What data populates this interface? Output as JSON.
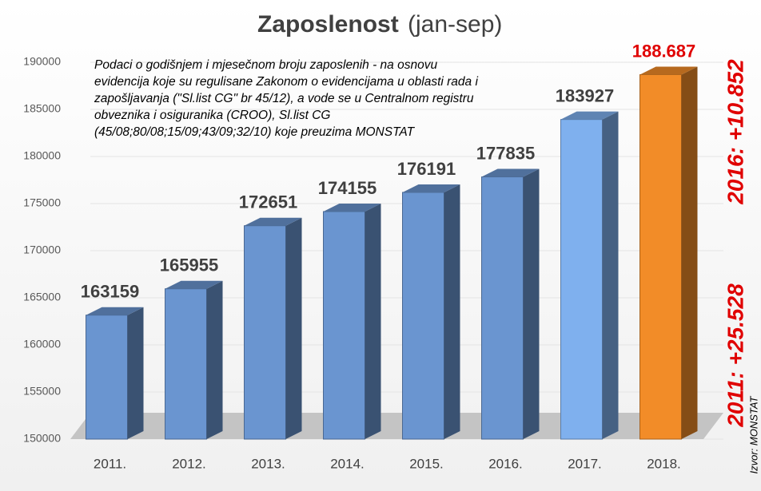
{
  "chart_data": {
    "type": "bar3d",
    "title": "Zaposlenost",
    "subtitle": "(jan-sep)",
    "categories": [
      "2011.",
      "2012.",
      "2013.",
      "2014.",
      "2015.",
      "2016.",
      "2017.",
      "2018."
    ],
    "values": [
      163159,
      165955,
      172651,
      174155,
      176191,
      177835,
      183927,
      188687
    ],
    "value_labels": [
      "163159",
      "165955",
      "172651",
      "174155",
      "176191",
      "177835",
      "183927",
      "188.687"
    ],
    "colors": [
      "#6a95d0",
      "#6a95d0",
      "#6a95d0",
      "#6a95d0",
      "#6a95d0",
      "#6a95d0",
      "#7fb0ee",
      "#f28c28"
    ],
    "value_label_colors": [
      "#404040",
      "#404040",
      "#404040",
      "#404040",
      "#404040",
      "#404040",
      "#404040",
      "#e00000"
    ],
    "ylim": [
      150000,
      190000
    ],
    "yticks": [
      150000,
      155000,
      160000,
      165000,
      170000,
      175000,
      180000,
      185000,
      190000
    ],
    "grid": true,
    "annotations": {
      "note": [
        "Podaci o godišnjem i mjesečnom broju zaposlenih - na osnovu",
        "evidencija  koje su  regulisane Zakonom o evidencijama u oblasti rada i",
        "zapošljavanja (\"Sl.list CG\" br 45/12), a vode se u Centralnom registru",
        "obveznika i osiguranika (CROO), Sl.list CG",
        "(45/08;80/08;15/09;43/09;32/10) koje preuzima MONSTAT"
      ],
      "change_2016": "2016: +10.852",
      "change_2011": "2011: +25.528",
      "source": "Izvor: MONSTAT"
    }
  }
}
